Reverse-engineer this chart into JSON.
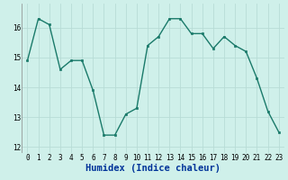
{
  "x": [
    0,
    1,
    2,
    3,
    4,
    5,
    6,
    7,
    8,
    9,
    10,
    11,
    12,
    13,
    14,
    15,
    16,
    17,
    18,
    19,
    20,
    21,
    22,
    23
  ],
  "y": [
    14.9,
    16.3,
    16.1,
    14.6,
    14.9,
    14.9,
    13.9,
    12.4,
    12.4,
    13.1,
    13.3,
    15.4,
    15.7,
    16.3,
    16.3,
    15.8,
    15.8,
    15.3,
    15.7,
    15.4,
    15.2,
    14.3,
    13.2,
    12.5
  ],
  "line_color": "#1a7a6a",
  "marker": "s",
  "markersize": 2.0,
  "linewidth": 1.0,
  "xlabel": "Humidex (Indice chaleur)",
  "xlabel_fontsize": 7.5,
  "ylim": [
    11.8,
    16.8
  ],
  "xlim": [
    -0.5,
    23.5
  ],
  "yticks": [
    12,
    13,
    14,
    15,
    16
  ],
  "xticks": [
    0,
    1,
    2,
    3,
    4,
    5,
    6,
    7,
    8,
    9,
    10,
    11,
    12,
    13,
    14,
    15,
    16,
    17,
    18,
    19,
    20,
    21,
    22,
    23
  ],
  "background_color": "#cff0ea",
  "grid_color": "#b8dcd6",
  "tick_fontsize": 5.5,
  "label_color": "#003399"
}
